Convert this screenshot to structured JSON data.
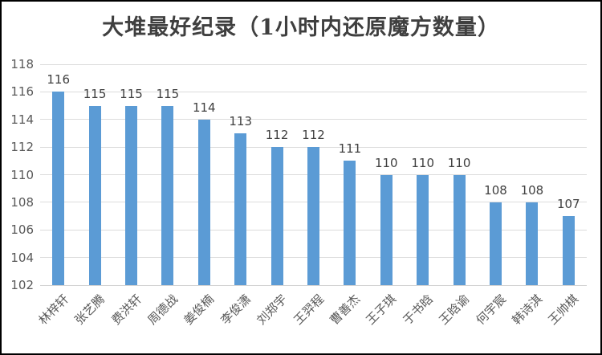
{
  "title": "大堆最好纪录（1小时内还原魔方数量）",
  "colors": {
    "bar": "#5b9bd5",
    "gridline": "#dcdcdc",
    "axis_text": "#595959",
    "data_label_text": "#404040",
    "title_text": "#3f3f3f",
    "frame_border": "#000000",
    "background": "#ffffff"
  },
  "chart_data": {
    "type": "bar",
    "title": "大堆最好纪录（1小时内还原魔方数量）",
    "categories": [
      "林梓轩",
      "张艺腾",
      "费洪轩",
      "周德战",
      "姜俊楠",
      "李俊潇",
      "刘郑宇",
      "王羿程",
      "曹善杰",
      "王子琪",
      "于书晗",
      "王晗谕",
      "何宇宸",
      "韩诗淇",
      "王帅棋"
    ],
    "values": [
      116,
      115,
      115,
      115,
      114,
      113,
      112,
      112,
      111,
      110,
      110,
      110,
      108,
      108,
      107
    ],
    "data_labels": [
      116,
      115,
      115,
      115,
      114,
      113,
      112,
      112,
      111,
      110,
      110,
      110,
      108,
      108,
      107
    ],
    "xlabel": "",
    "ylabel": "",
    "ylim": [
      102,
      118
    ],
    "yticks": [
      118,
      116,
      114,
      112,
      110,
      108,
      106,
      104,
      102
    ],
    "grid": true,
    "grid_orientation": "horizontal",
    "legend": "none",
    "bar_color": "#5b9bd5",
    "x_tick_rotation_deg": 45
  }
}
